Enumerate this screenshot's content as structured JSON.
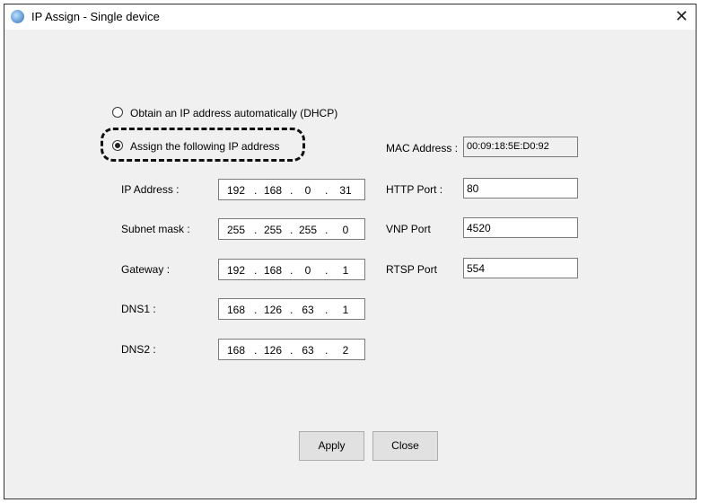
{
  "window": {
    "title": "IP Assign - Single device",
    "close": "✕"
  },
  "mode": {
    "dhcp_label": "Obtain an IP address automatically (DHCP)",
    "static_label": "Assign the following IP address",
    "selected": "static"
  },
  "fields": [
    {
      "label": "IP Address :",
      "value": [
        "192",
        "168",
        "0",
        "31"
      ]
    },
    {
      "label": "Subnet mask :",
      "value": [
        "255",
        "255",
        "255",
        "0"
      ]
    },
    {
      "label": "Gateway :",
      "value": [
        "192",
        "168",
        "0",
        "1"
      ]
    },
    {
      "label": "DNS1 :",
      "value": [
        "168",
        "126",
        "63",
        "1"
      ]
    },
    {
      "label": "DNS2 :",
      "value": [
        "168",
        "126",
        "63",
        "2"
      ]
    }
  ],
  "right": [
    {
      "label": "MAC Address :",
      "value": "00:09:18:5E:D0:92",
      "readonly": true
    },
    {
      "label": "HTTP Port :",
      "value": "80"
    },
    {
      "label": "VNP Port",
      "value": "4520"
    },
    {
      "label": "RTSP Port",
      "value": "554"
    }
  ],
  "buttons": {
    "apply": "Apply",
    "close": "Close"
  }
}
